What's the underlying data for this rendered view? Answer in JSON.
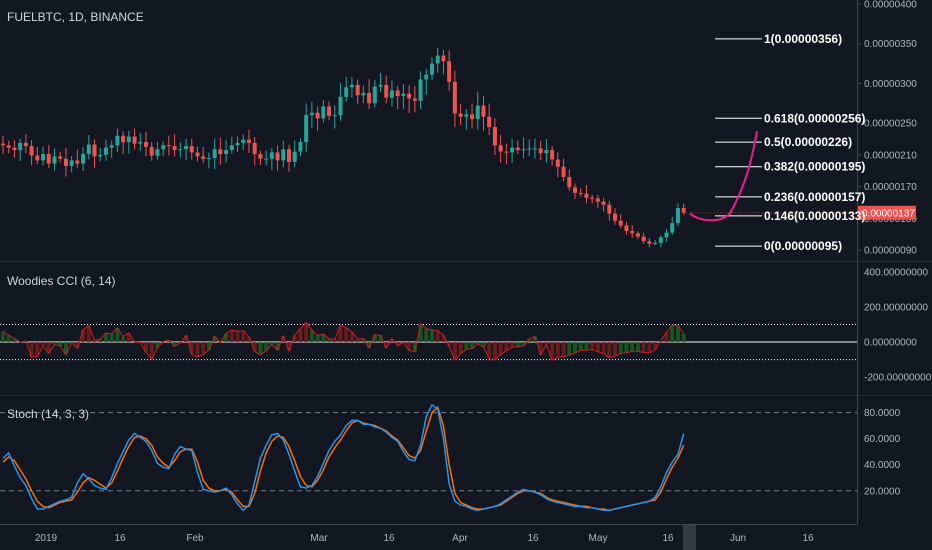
{
  "chart_data": [
    {
      "type": "candlestick",
      "title": "FUELBTC, 1D, BINANCE",
      "price_ticks": [
        "0.00000400",
        "0.00000350",
        "0.00000300",
        "0.00000250",
        "0.00000210",
        "0.00000170",
        "0.00000130",
        "0.00000090"
      ],
      "ylim": [
        8e-07,
        4e-06
      ],
      "last_price": "0.00000137",
      "x_ticks": [
        "2019",
        "16",
        "Feb",
        "Mar",
        "16",
        "Apr",
        "16",
        "May",
        "16",
        "Jun",
        "16"
      ],
      "fib_levels": [
        {
          "ratio": "1",
          "price": "0.00000356",
          "label": "1(0.00000356)"
        },
        {
          "ratio": "0.618",
          "price": "0.00000256",
          "label": "0.618(0.00000256)"
        },
        {
          "ratio": "0.5",
          "price": "0.00000226",
          "label": "0.5(0.00000226)"
        },
        {
          "ratio": "0.382",
          "price": "0.00000195",
          "label": "0.382(0.00000195)"
        },
        {
          "ratio": "0.236",
          "price": "0.00000157",
          "label": "0.236(0.00000157)"
        },
        {
          "ratio": "0.146",
          "price": "0.00000133",
          "label": "0.146(0.00000133)"
        },
        {
          "ratio": "0",
          "price": "0.00000095",
          "label": "0(0.00000095)"
        }
      ],
      "closes": [
        2.22e-06,
        2.19e-06,
        2.16e-06,
        2.25e-06,
        2.21e-06,
        2.09e-06,
        2.03e-06,
        2.11e-06,
        1.99e-06,
        2.08e-06,
        2.05e-06,
        1.96e-06,
        2.03e-06,
        1.99e-06,
        2.11e-06,
        2.23e-06,
        2.08e-06,
        2.1e-06,
        2.19e-06,
        2.22e-06,
        2.34e-06,
        2.26e-06,
        2.33e-06,
        2.24e-06,
        2.26e-06,
        2.2e-06,
        2.09e-06,
        2.17e-06,
        2.22e-06,
        2.21e-06,
        2.16e-06,
        2.17e-06,
        2.21e-06,
        2.13e-06,
        2.08e-06,
        2.05e-06,
        2.06e-06,
        2.17e-06,
        2.11e-06,
        2.16e-06,
        2.22e-06,
        2.25e-06,
        2.29e-06,
        2.25e-06,
        2.11e-06,
        2.05e-06,
        2.05e-06,
        2.13e-06,
        2.03e-06,
        2.17e-06,
        2.01e-06,
        2.14e-06,
        2.26e-06,
        2.6e-06,
        2.63e-06,
        2.56e-06,
        2.71e-06,
        2.59e-06,
        2.6e-06,
        2.83e-06,
        2.95e-06,
        2.98e-06,
        2.85e-06,
        2.88e-06,
        2.75e-06,
        2.96e-06,
        2.98e-06,
        2.82e-06,
        2.91e-06,
        2.84e-06,
        2.87e-06,
        2.81e-06,
        2.78e-06,
        3.05e-06,
        3.11e-06,
        3.25e-06,
        3.35e-06,
        3.28e-06,
        3.02e-06,
        2.62e-06,
        2.58e-06,
        2.61e-06,
        2.55e-06,
        2.72e-06,
        2.58e-06,
        2.45e-06,
        2.22e-06,
        2.14e-06,
        2.13e-06,
        2.19e-06,
        2.16e-06,
        2.17e-06,
        2.18e-06,
        2.18e-06,
        2.12e-06,
        2.16e-06,
        2.04e-06,
        1.95e-06,
        1.82e-06,
        1.69e-06,
        1.62e-06,
        1.61e-06,
        1.56e-06,
        1.55e-06,
        1.51e-06,
        1.47e-06,
        1.36e-06,
        1.27e-06,
        1.21e-06,
        1.14e-06,
        1.11e-06,
        1.07e-06,
        1.01e-06,
        9.8e-07,
        9.9e-07,
        1.06e-06,
        1.12e-06,
        1.24e-06,
        1.43e-06,
        1.37e-06
      ],
      "cci": {
        "title": "Woodies CCI (6, 14)",
        "ticks": [
          "400.00000000",
          "200.00000000",
          "0.00000000",
          "-200.00000000"
        ],
        "levels": [
          100,
          0,
          -100
        ],
        "ylim": [
          -290,
          450
        ]
      },
      "stoch": {
        "title": "Stoch (14, 3, 3)",
        "ticks": [
          "80.0000",
          "60.0000",
          "40.0000",
          "20.0000"
        ],
        "levels": [
          80,
          20
        ],
        "ylim": [
          -4,
          92
        ],
        "k": [
          45,
          49,
          39,
          30,
          24,
          14,
          6,
          6,
          8,
          10,
          12,
          13,
          15,
          26,
          33,
          29,
          24,
          22,
          21,
          30,
          41,
          50,
          59,
          64,
          61,
          58,
          51,
          41,
          38,
          37,
          48,
          54,
          52,
          51,
          34,
          21,
          20,
          19,
          20,
          22,
          17,
          10,
          5,
          9,
          27,
          45,
          55,
          63,
          64,
          59,
          48,
          35,
          23,
          22,
          24,
          31,
          41,
          51,
          58,
          63,
          70,
          74,
          74,
          71,
          71,
          69,
          68,
          65,
          61,
          58,
          50,
          44,
          43,
          55,
          77,
          86,
          83,
          60,
          25,
          12,
          9,
          8,
          6,
          5,
          6,
          7,
          8,
          10,
          13,
          16,
          19,
          21,
          20,
          19,
          17,
          14,
          12,
          11,
          10,
          9,
          8,
          8,
          7,
          7,
          6,
          5,
          5,
          6,
          7,
          8,
          9,
          10,
          11,
          12,
          15,
          23,
          34,
          42,
          48,
          64
        ],
        "d": [
          42,
          46,
          43,
          36,
          29,
          20,
          12,
          8,
          7,
          9,
          11,
          12,
          13,
          19,
          26,
          30,
          28,
          25,
          22,
          26,
          35,
          45,
          54,
          61,
          62,
          60,
          55,
          46,
          41,
          38,
          43,
          50,
          52,
          52,
          42,
          28,
          22,
          20,
          20,
          21,
          19,
          13,
          8,
          8,
          18,
          35,
          49,
          58,
          62,
          61,
          54,
          43,
          31,
          24,
          23,
          28,
          36,
          46,
          53,
          59,
          66,
          72,
          74,
          72,
          71,
          70,
          68,
          66,
          62,
          59,
          53,
          47,
          45,
          51,
          66,
          80,
          84,
          70,
          40,
          18,
          11,
          9,
          7,
          6,
          6,
          7,
          8,
          9,
          12,
          15,
          18,
          20,
          20,
          19,
          18,
          15,
          13,
          12,
          11,
          10,
          9,
          8,
          8,
          7,
          6,
          6,
          5,
          6,
          7,
          8,
          9,
          10,
          11,
          12,
          13,
          19,
          29,
          38,
          45,
          55
        ]
      }
    }
  ],
  "colors": {
    "background": "#131722",
    "up": "#26a69a",
    "down": "#ef5350",
    "fib_curve": "#e91e8c",
    "stoch_k": "#2196f3",
    "stoch_d": "#ff6d00",
    "cci_line": "#cc2020",
    "cci_hist_pos": "#7a1c1c",
    "cci_hist_neg": "#7a1c1c",
    "cci_hist_green": "#1b5e20",
    "text": "#d1d4dc"
  }
}
